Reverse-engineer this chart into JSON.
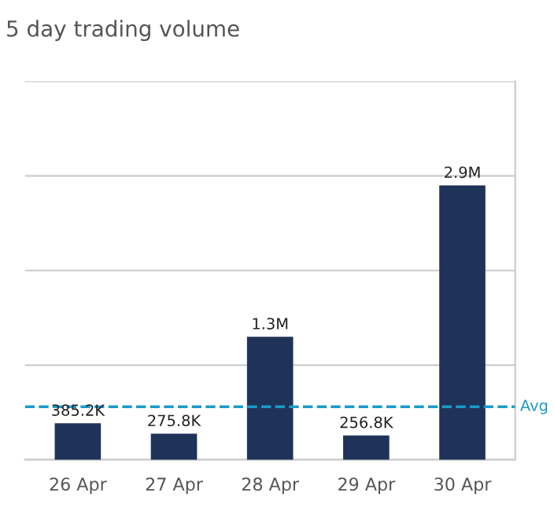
{
  "chart_data": {
    "type": "bar",
    "title": "5 day trading volume",
    "categories": [
      "26 Apr",
      "27 Apr",
      "28 Apr",
      "29 Apr",
      "30 Apr"
    ],
    "values": [
      385200,
      275800,
      1300000,
      256800,
      2900000
    ],
    "value_labels": [
      "385.2K",
      "275.8K",
      "1.3M",
      "256.8K",
      "2.9M"
    ],
    "color": "#1f3358",
    "ylim": [
      0,
      4000000
    ],
    "yticks": [
      {
        "value": 0,
        "label": null
      },
      {
        "value": 1000000,
        "label": null
      },
      {
        "value": 2000000,
        "label": null
      },
      {
        "value": 3000000,
        "label": null
      },
      {
        "value": 4000000,
        "label": null
      }
    ],
    "tick_labels": "x",
    "grid": "y",
    "ref_lines": [
      {
        "axis": "y",
        "value": 560000,
        "label": "Avg",
        "color": "#1a9bc9",
        "line_style": "dashed"
      }
    ]
  }
}
